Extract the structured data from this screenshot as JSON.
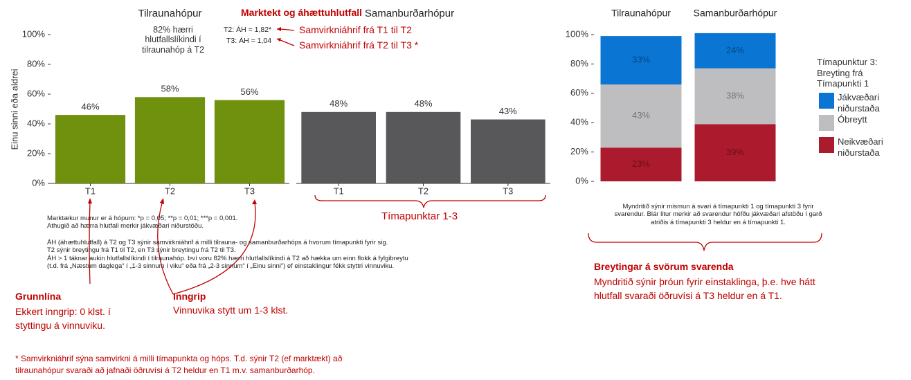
{
  "chart_data": [
    {
      "type": "bar",
      "ylabel": "Einu sinni eða aldrei",
      "ylim": [
        0,
        100
      ],
      "yticks": [
        {
          "value": 0,
          "label": "0%"
        },
        {
          "value": 20,
          "label": "20%"
        },
        {
          "value": 40,
          "label": "40%"
        },
        {
          "value": 60,
          "label": "60%"
        },
        {
          "value": 80,
          "label": "80%"
        },
        {
          "value": 100,
          "label": "100%"
        }
      ],
      "panels": [
        {
          "title": "Tilraunahópur",
          "color": "#70910e",
          "categories": [
            "T1",
            "T2",
            "T3"
          ],
          "values": [
            46,
            58,
            56
          ],
          "value_labels": [
            "46%",
            "58%",
            "56%"
          ]
        },
        {
          "title": "Samanburðarhópur",
          "color": "#58585a",
          "categories": [
            "T1",
            "T2",
            "T3"
          ],
          "values": [
            48,
            48,
            43
          ],
          "value_labels": [
            "48%",
            "48%",
            "43%"
          ]
        }
      ]
    },
    {
      "type": "stacked_bar",
      "ylim": [
        0,
        100
      ],
      "yticks": [
        {
          "value": 0,
          "label": "0%"
        },
        {
          "value": 20,
          "label": "20%"
        },
        {
          "value": 40,
          "label": "40%"
        },
        {
          "value": 60,
          "label": "60%"
        },
        {
          "value": 80,
          "label": "80%"
        },
        {
          "value": 100,
          "label": "100%"
        }
      ],
      "categories": [
        "Tilraunahópur",
        "Samanburðarhópur"
      ],
      "legend_title": "Tímapunktur 3: Breyting frá Tímapunkti 1",
      "series": [
        {
          "name": "Neikvæðari niðurstaða",
          "color": "#ab1a2d",
          "values": [
            23,
            39
          ],
          "value_labels": [
            "23%",
            "39%"
          ]
        },
        {
          "name": "Óbreytt",
          "color": "#bebec0",
          "values": [
            43,
            38
          ],
          "value_labels": [
            "43%",
            "38%"
          ]
        },
        {
          "name": "Jákvæðari niðurstaða",
          "color": "#0a75d2",
          "values": [
            33,
            24
          ],
          "value_labels": [
            "33%",
            "24%"
          ]
        }
      ]
    }
  ],
  "annotations": {
    "significance_title": "Marktekt og áhættuhlutfall",
    "odds_note": "82% hærri hlutfallslíkindi í tilraunahóp á T2",
    "or_t2": "T2: ÁH = 1,82*",
    "or_t3": "T3: ÁH = 1,04",
    "interaction_t1_t2": "Samvirkniáhrif frá T1 til T2",
    "interaction_t2_t3": "Samvirkniáhrif frá T2 til T3 *",
    "timepoints": "Tímapunktar 1-3",
    "notes": [
      "Marktækur munur er á hópum: *p = 0,05; **p = 0,01; ***p = 0,001.",
      "Athugið að hærra hlutfall merkir jákvæðari niðurstöðu.",
      "ÁH (áhættuhlutfall) á T2 og T3 sýnir samvirkniáhrif á milli tilrauna- og samanburðarhóps á hvorum tímapunkti fyrir sig.",
      "T2 sýnir breytingu frá T1 til T2, en T3 sýnir breytingu frá T2 til T3.",
      "ÁH > 1 táknar aukin hlutfallslíkindi í tilraunahóp. Því voru 82% hærri hlutfallslíkindi á T2 að hækka um einn flokk á fylgibreytu",
      "(t.d. frá „Næstum daglega“ í „1-3 sinnum í viku“ eða frá „2-3 sinnum“ í „Einu sinni“) ef einstaklingur fékk styttri vinnuviku."
    ],
    "baseline_title": "Grunnlína",
    "baseline_text": "Ekkert inngrip: 0 klst. í styttingu á vinnuviku.",
    "intervention_title": "Inngrip",
    "intervention_text": "Vinnuvika stytt um 1-3 klst.",
    "right_note": "Myndritið sýnir mismun á svari á tímapunkti 1 og tímapunkti 3 fyrir svarendur. Blár litur merkir að svarendur höfðu jákvæðari afstöðu í garð atriðis á tímapunkti 3 heldur en á tímapunkti 1.",
    "change_title": "Breytingar á svörum svarenda",
    "change_text": "Myndritið sýnir þróun fyrir einstaklinga, þ.e. hve hátt hlutfall svaraði öðruvísi á T3 heldur en á T1.",
    "footnote": "* Samvirkniáhrif sýna samvirkni á milli tímapunkta og hóps. T.d. sýnir T2 (ef marktækt) að tilraunahópur svaraði að jafnaði öðruvísi á T2 heldur en T1 m.v. samanburðarhóp."
  }
}
